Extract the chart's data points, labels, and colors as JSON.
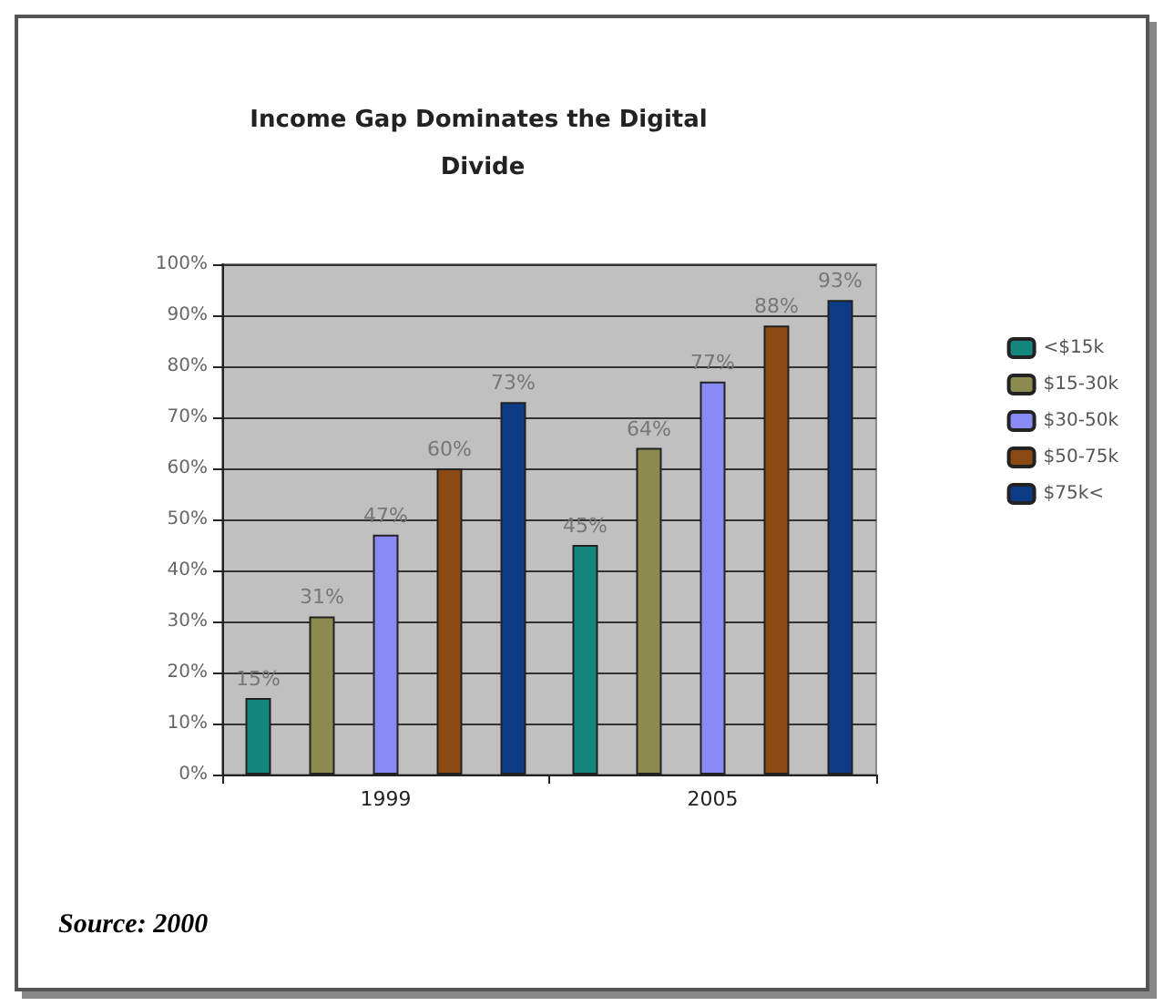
{
  "chart_data": {
    "type": "bar",
    "title": "Income Gap Dominates the Digital Divide",
    "categories": [
      "1999",
      "2005"
    ],
    "series": [
      {
        "name": "<$15k",
        "color": "#13877e",
        "values": [
          15,
          45
        ],
        "value_labels": [
          "15%",
          "45%"
        ]
      },
      {
        "name": "$15-30k",
        "color": "#8c8a4f",
        "values": [
          31,
          64
        ],
        "value_labels": [
          "31%",
          "64%"
        ]
      },
      {
        "name": "$30-50k",
        "color": "#8a8af6",
        "values": [
          47,
          77
        ],
        "value_labels": [
          "47%",
          "77%"
        ]
      },
      {
        "name": "$50-75k",
        "color": "#8b4a12",
        "values": [
          60,
          88
        ],
        "value_labels": [
          "60%",
          "88%"
        ]
      },
      {
        "name": "$75k<",
        "color": "#0d3b86",
        "values": [
          73,
          93
        ],
        "value_labels": [
          "73%",
          "93%"
        ]
      }
    ],
    "ylim": [
      0,
      100
    ],
    "yticks": [
      {
        "value": 0,
        "label": "0%"
      },
      {
        "value": 10,
        "label": "10%"
      },
      {
        "value": 20,
        "label": "20%"
      },
      {
        "value": 30,
        "label": "30%"
      },
      {
        "value": 40,
        "label": "40%"
      },
      {
        "value": 50,
        "label": "50%"
      },
      {
        "value": 60,
        "label": "60%"
      },
      {
        "value": 70,
        "label": "70%"
      },
      {
        "value": 80,
        "label": "80%"
      },
      {
        "value": 90,
        "label": "90%"
      },
      {
        "value": 100,
        "label": "100%"
      }
    ],
    "grid": "y",
    "legend": "right",
    "annotations": [
      "Source: 2000"
    ]
  }
}
